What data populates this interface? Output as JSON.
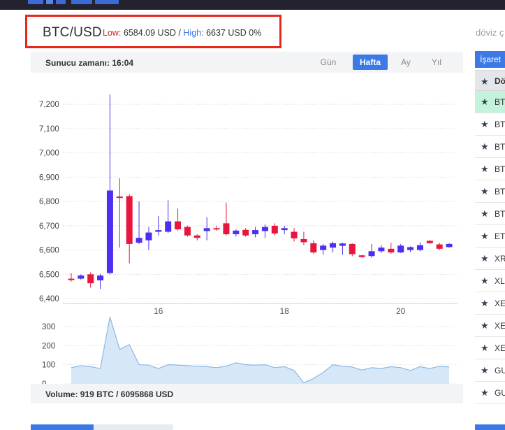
{
  "header": {
    "pair": "BTC/USD",
    "low_label": "Low:",
    "low_value": "6584.09 USD",
    "separator": "/",
    "high_label": "High:",
    "high_value": "6637 USD",
    "change": "0%",
    "right_hint": "döviz ç"
  },
  "chart_panel": {
    "server_time": "Sunucu zamanı: 16:04",
    "tabs": [
      {
        "label": "Gün",
        "active": false
      },
      {
        "label": "Hafta",
        "active": true
      },
      {
        "label": "Ay",
        "active": false
      },
      {
        "label": "Yıl",
        "active": false
      }
    ],
    "volume_text": "Volume: 919 BTC / 6095868 USD"
  },
  "sidebar": {
    "button_label": "İşaret",
    "header_label": "Dö",
    "rows": [
      {
        "label": "BT",
        "highlight": true
      },
      {
        "label": "BT",
        "highlight": false
      },
      {
        "label": "BT",
        "highlight": false
      },
      {
        "label": "BT",
        "highlight": false
      },
      {
        "label": "BT",
        "highlight": false
      },
      {
        "label": "BT",
        "highlight": false
      },
      {
        "label": "ET",
        "highlight": false
      },
      {
        "label": "XR",
        "highlight": false
      },
      {
        "label": "XL",
        "highlight": false
      },
      {
        "label": "XE",
        "highlight": false
      },
      {
        "label": "XE",
        "highlight": false
      },
      {
        "label": "XE",
        "highlight": false
      },
      {
        "label": "GU",
        "highlight": false
      },
      {
        "label": "GU",
        "highlight": false
      }
    ]
  },
  "colors": {
    "up": "#4d2ff0",
    "down": "#e8163f",
    "accent": "#3b7ae6",
    "volume_line": "#8ab7e6",
    "volume_fill": "#d6e8f8"
  },
  "chart_data": {
    "type": "candlestick",
    "title": "",
    "price_axis": {
      "ylim": [
        6380,
        7330
      ],
      "ticks": [
        6400,
        6500,
        6600,
        6700,
        6800,
        6900,
        7000,
        7100,
        7200
      ],
      "tick_labels": [
        "6,400",
        "6,500",
        "6,600",
        "6,700",
        "6,800",
        "6,900",
        "7,000",
        "7,100",
        "7,200"
      ]
    },
    "x_ticks": [
      {
        "label": "16",
        "index": 9
      },
      {
        "label": "18",
        "index": 22
      },
      {
        "label": "20",
        "index": 34
      }
    ],
    "candles": [
      {
        "open": 6482,
        "close": 6477,
        "high": 6505,
        "low": 6470
      },
      {
        "open": 6482,
        "close": 6495,
        "high": 6500,
        "low": 6478
      },
      {
        "open": 6500,
        "close": 6463,
        "high": 6508,
        "low": 6445
      },
      {
        "open": 6475,
        "close": 6495,
        "high": 6502,
        "low": 6440
      },
      {
        "open": 6505,
        "close": 6845,
        "high": 7240,
        "low": 6500
      },
      {
        "open": 6820,
        "close": 6815,
        "high": 6895,
        "low": 6610
      },
      {
        "open": 6822,
        "close": 6625,
        "high": 6830,
        "low": 6545
      },
      {
        "open": 6630,
        "close": 6650,
        "high": 6800,
        "low": 6625
      },
      {
        "open": 6640,
        "close": 6672,
        "high": 6695,
        "low": 6600
      },
      {
        "open": 6675,
        "close": 6682,
        "high": 6740,
        "low": 6660
      },
      {
        "open": 6675,
        "close": 6718,
        "high": 6805,
        "low": 6670
      },
      {
        "open": 6718,
        "close": 6685,
        "high": 6770,
        "low": 6680
      },
      {
        "open": 6695,
        "close": 6660,
        "high": 6700,
        "low": 6655
      },
      {
        "open": 6660,
        "close": 6650,
        "high": 6665,
        "low": 6640
      },
      {
        "open": 6678,
        "close": 6690,
        "high": 6735,
        "low": 6640
      },
      {
        "open": 6690,
        "close": 6685,
        "high": 6700,
        "low": 6680
      },
      {
        "open": 6710,
        "close": 6665,
        "high": 6795,
        "low": 6660
      },
      {
        "open": 6665,
        "close": 6680,
        "high": 6685,
        "low": 6655
      },
      {
        "open": 6683,
        "close": 6660,
        "high": 6690,
        "low": 6655
      },
      {
        "open": 6665,
        "close": 6682,
        "high": 6695,
        "low": 6652
      },
      {
        "open": 6678,
        "close": 6695,
        "high": 6705,
        "low": 6650
      },
      {
        "open": 6700,
        "close": 6668,
        "high": 6710,
        "low": 6660
      },
      {
        "open": 6682,
        "close": 6690,
        "high": 6700,
        "low": 6665
      },
      {
        "open": 6675,
        "close": 6648,
        "high": 6690,
        "low": 6635
      },
      {
        "open": 6645,
        "close": 6632,
        "high": 6675,
        "low": 6620
      },
      {
        "open": 6628,
        "close": 6590,
        "high": 6640,
        "low": 6585
      },
      {
        "open": 6600,
        "close": 6618,
        "high": 6625,
        "low": 6580
      },
      {
        "open": 6610,
        "close": 6628,
        "high": 6635,
        "low": 6590
      },
      {
        "open": 6617,
        "close": 6627,
        "high": 6630,
        "low": 6580
      },
      {
        "open": 6625,
        "close": 6583,
        "high": 6628,
        "low": 6575
      },
      {
        "open": 6578,
        "close": 6571,
        "high": 6580,
        "low": 6568
      },
      {
        "open": 6575,
        "close": 6595,
        "high": 6625,
        "low": 6568
      },
      {
        "open": 6595,
        "close": 6610,
        "high": 6620,
        "low": 6588
      },
      {
        "open": 6605,
        "close": 6590,
        "high": 6630,
        "low": 6585
      },
      {
        "open": 6590,
        "close": 6618,
        "high": 6625,
        "low": 6588
      },
      {
        "open": 6600,
        "close": 6612,
        "high": 6615,
        "low": 6592
      },
      {
        "open": 6600,
        "close": 6620,
        "high": 6632,
        "low": 6595
      },
      {
        "open": 6638,
        "close": 6628,
        "high": 6640,
        "low": 6625
      },
      {
        "open": 6623,
        "close": 6605,
        "high": 6630,
        "low": 6600
      },
      {
        "open": 6612,
        "close": 6625,
        "high": 6628,
        "low": 6610
      }
    ],
    "volume": {
      "ylim": [
        0,
        340
      ],
      "ticks": [
        0,
        100,
        200,
        300
      ],
      "tick_labels": [
        "0",
        "100",
        "200",
        "300"
      ],
      "values": [
        85,
        95,
        90,
        80,
        350,
        180,
        205,
        100,
        98,
        80,
        100,
        98,
        95,
        92,
        90,
        85,
        92,
        110,
        100,
        98,
        100,
        85,
        90,
        70,
        5,
        28,
        60,
        100,
        92,
        88,
        72,
        85,
        80,
        90,
        85,
        70,
        90,
        80,
        92,
        88
      ]
    }
  }
}
